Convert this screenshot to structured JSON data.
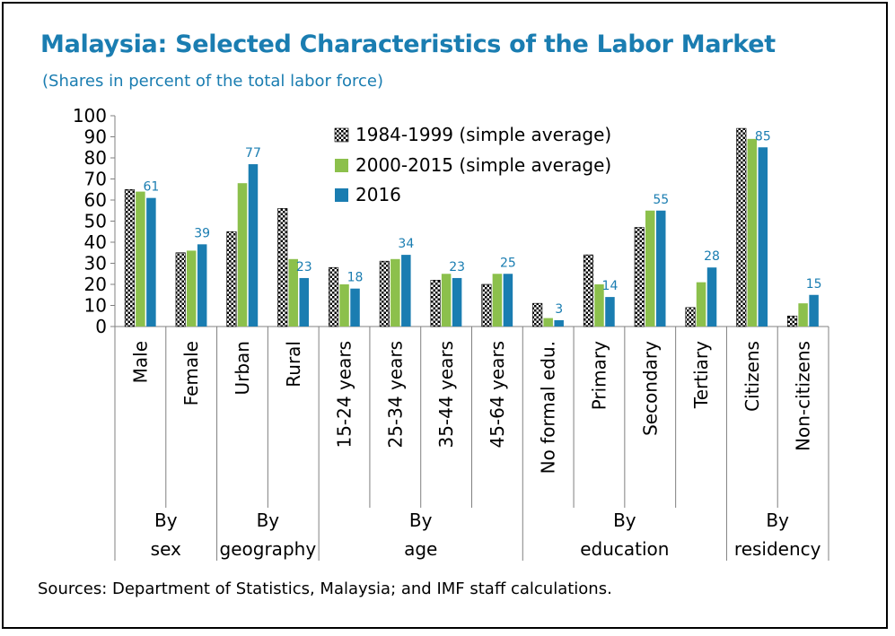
{
  "title": "Malaysia: Selected Characteristics of the Labor Market",
  "subtitle": "(Shares in percent of the total labor force)",
  "source": "Sources: Department of Statistics, Malaysia; and IMF staff calculations.",
  "colors": {
    "title": "#1a7db1",
    "series_2000_2015": "#8cc04c",
    "series_2016": "#1a7db1",
    "series_1984_1999_hatch": "#000000",
    "label": "#1a7db1"
  },
  "chart_data": {
    "type": "bar",
    "ylim": [
      0,
      100
    ],
    "yticks": [
      0,
      10,
      20,
      30,
      40,
      50,
      60,
      70,
      80,
      90,
      100
    ],
    "grid": false,
    "legend_position": "top-center",
    "categories": [
      "Male",
      "Female",
      "Urban",
      "Rural",
      "15-24 years",
      "25-34 years",
      "35-44 years",
      "45-64 years",
      "No formal edu.",
      "Primary",
      "Secondary",
      "Tertiary",
      "Citizens",
      "Non-citizens"
    ],
    "groups": [
      {
        "line1": "By",
        "line2": "sex",
        "count": 2
      },
      {
        "line1": "By",
        "line2": "geography",
        "count": 2
      },
      {
        "line1": "By",
        "line2": "age",
        "count": 4
      },
      {
        "line1": "By",
        "line2": "education",
        "count": 4
      },
      {
        "line1": "By",
        "line2": "residency",
        "count": 2
      }
    ],
    "series": [
      {
        "name": "1984-1999 (simple average)",
        "pattern": "checker",
        "values": [
          65,
          35,
          45,
          56,
          28,
          31,
          22,
          20,
          11,
          34,
          47,
          9,
          94,
          5
        ]
      },
      {
        "name": "2000-2015 (simple average)",
        "color": "#8cc04c",
        "values": [
          64,
          36,
          68,
          32,
          20,
          32,
          25,
          25,
          4,
          20,
          55,
          21,
          89,
          11
        ]
      },
      {
        "name": "2016",
        "color": "#1a7db1",
        "values": [
          61,
          39,
          77,
          23,
          18,
          34,
          23,
          25,
          3,
          14,
          55,
          28,
          85,
          15
        ]
      }
    ],
    "data_labels": [
      "61",
      "39",
      "77",
      "23",
      "18",
      "34",
      "23",
      "25",
      "3",
      "14",
      "55",
      "28",
      "85",
      "15"
    ]
  }
}
